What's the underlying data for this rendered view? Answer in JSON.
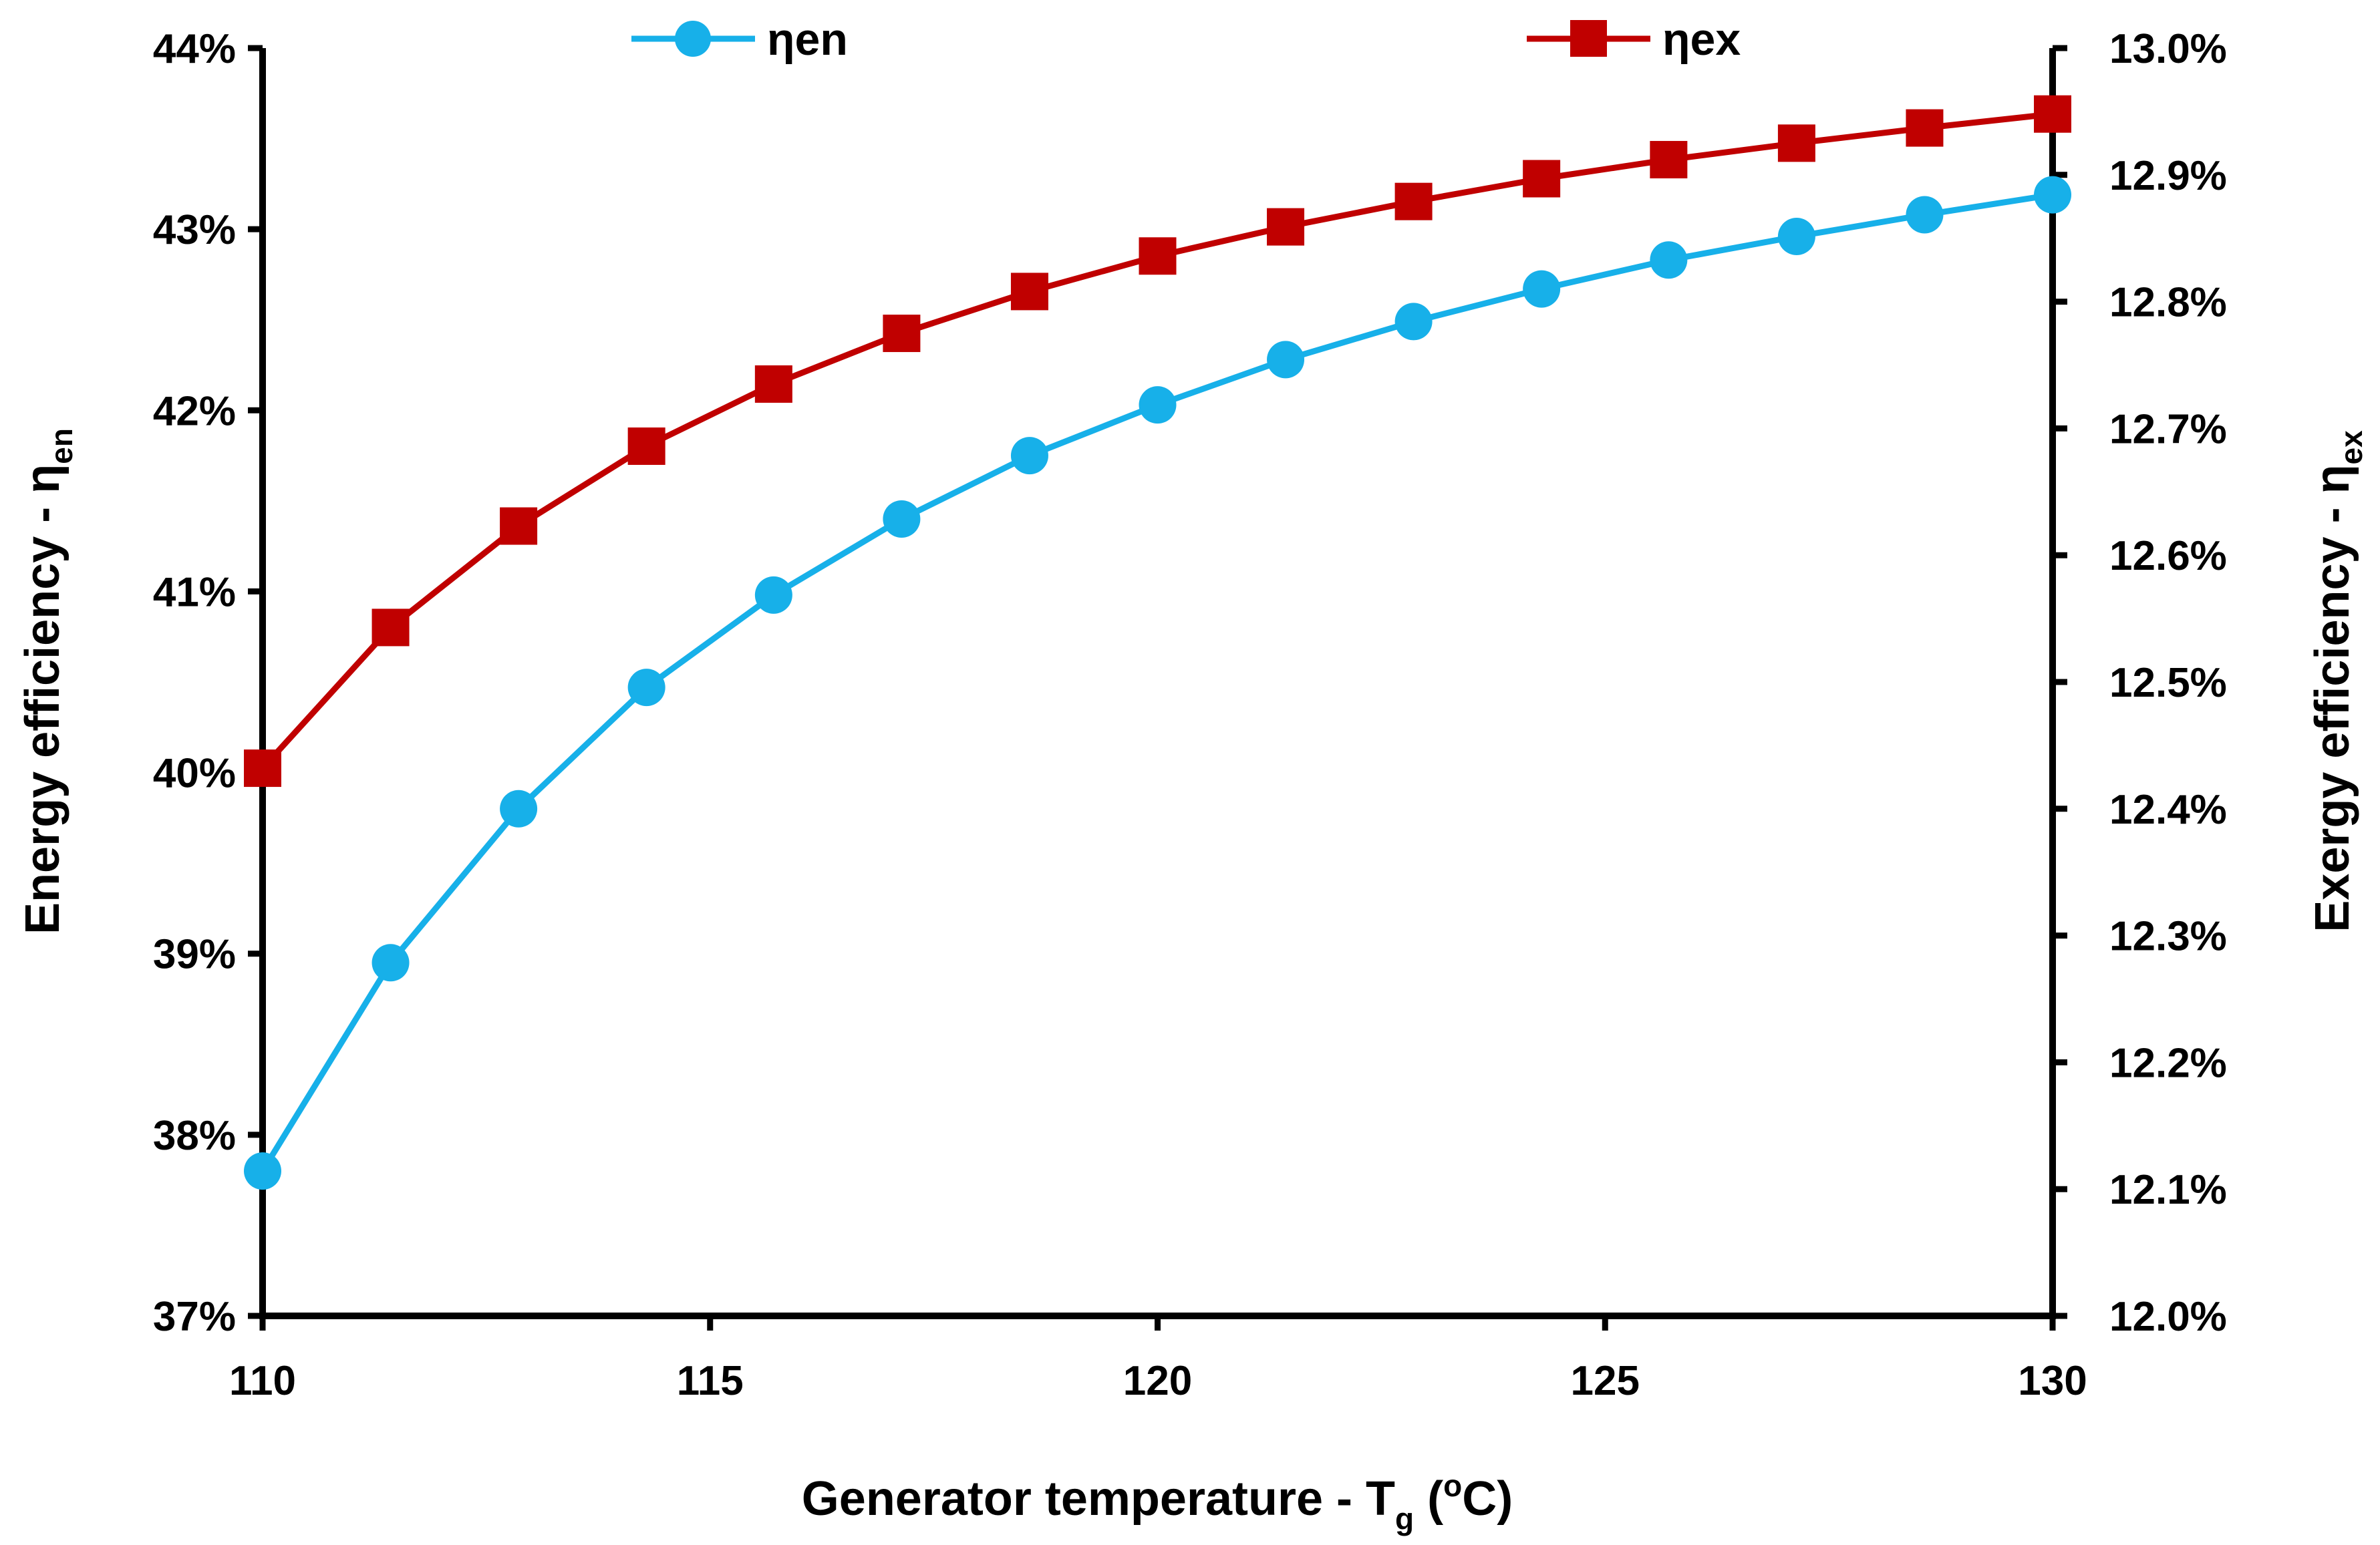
{
  "chart_data": {
    "type": "line",
    "x": [
      110,
      111.43,
      112.86,
      114.29,
      115.71,
      117.14,
      118.57,
      120,
      121.43,
      122.86,
      124.29,
      125.71,
      127.14,
      128.57,
      130
    ],
    "series": [
      {
        "name": "ηen",
        "axis": "left",
        "color": "#17b0e9",
        "marker": "circle",
        "values": [
          37.8,
          38.95,
          39.8,
          40.47,
          40.98,
          41.4,
          41.75,
          42.03,
          42.28,
          42.49,
          42.67,
          42.83,
          42.96,
          43.08,
          43.19
        ]
      },
      {
        "name": "ηex",
        "axis": "right",
        "color": "#c00000",
        "marker": "square",
        "values": [
          12.432,
          12.543,
          12.623,
          12.686,
          12.735,
          12.775,
          12.808,
          12.836,
          12.859,
          12.879,
          12.897,
          12.912,
          12.925,
          12.937,
          12.948
        ]
      }
    ],
    "xlim": [
      110,
      130
    ],
    "ylim_left": [
      37,
      44
    ],
    "ylim_right": [
      12.0,
      13.0
    ],
    "xticks": [
      "110",
      "115",
      "120",
      "125",
      "130"
    ],
    "yticks_left": [
      "37%",
      "38%",
      "39%",
      "40%",
      "41%",
      "42%",
      "43%",
      "44%"
    ],
    "yticks_right": [
      "12.0%",
      "12.1%",
      "12.2%",
      "12.3%",
      "12.4%",
      "12.5%",
      "12.6%",
      "12.7%",
      "12.8%",
      "12.9%",
      "13.0%"
    ],
    "xlabel": {
      "main": "Generator temperature - T",
      "sub": "g",
      "open": " (",
      "sup": "o",
      "tail": "C)"
    },
    "ylabel_left": {
      "main": "Energy efficiency - η",
      "sub": "en"
    },
    "ylabel_right": {
      "main": "Exergy efficiency - η",
      "sub": "ex"
    },
    "legend_position": "top",
    "grid": false
  }
}
